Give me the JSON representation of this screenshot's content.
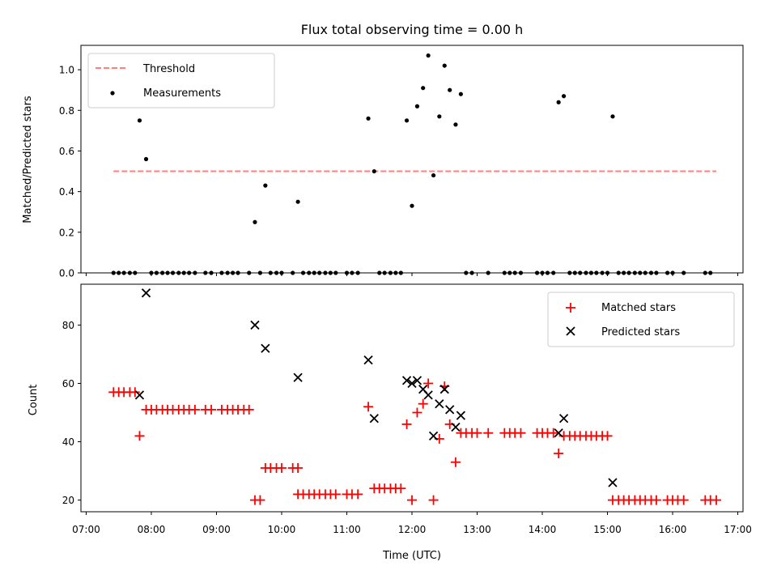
{
  "figure": {
    "title": "Flux total observing time = 0.00 h",
    "xlabel": "Time (UTC)"
  },
  "chart_data": [
    {
      "type": "scatter",
      "panel": "top",
      "title": "Flux total observing time = 0.00 h",
      "xlabel": "",
      "ylabel": "Matched/Predicted stars",
      "xlim": [
        6.92,
        17.08
      ],
      "ylim": [
        0,
        1.12
      ],
      "yticks": [
        0.0,
        0.2,
        0.4,
        0.6,
        0.8,
        1.0
      ],
      "ytick_labels": [
        "0.0",
        "0.2",
        "0.4",
        "0.6",
        "0.8",
        "1.0"
      ],
      "legend_position": "upper-left",
      "threshold": {
        "name": "Threshold",
        "color": "#ff7f7f",
        "y": 0.5,
        "x": [
          7.42,
          16.67
        ]
      },
      "measurements": {
        "name": "Measurements",
        "color": "#000000",
        "points": [
          [
            7.82,
            0.75
          ],
          [
            7.92,
            0.56
          ],
          [
            9.59,
            0.25
          ],
          [
            9.75,
            0.43
          ],
          [
            10.25,
            0.35
          ],
          [
            11.33,
            0.76
          ],
          [
            11.42,
            0.5
          ],
          [
            11.92,
            0.75
          ],
          [
            12.0,
            0.33
          ],
          [
            12.08,
            0.82
          ],
          [
            12.17,
            0.91
          ],
          [
            12.25,
            1.07
          ],
          [
            12.33,
            0.48
          ],
          [
            12.42,
            0.77
          ],
          [
            12.5,
            1.02
          ],
          [
            12.58,
            0.9
          ],
          [
            12.67,
            0.73
          ],
          [
            12.75,
            0.88
          ],
          [
            14.25,
            0.84
          ],
          [
            14.33,
            0.87
          ],
          [
            15.08,
            0.77
          ]
        ],
        "zeros_x": [
          7.42,
          7.5,
          7.58,
          7.67,
          7.75,
          8.0,
          8.08,
          8.17,
          8.25,
          8.33,
          8.42,
          8.5,
          8.58,
          8.67,
          8.83,
          8.92,
          9.08,
          9.17,
          9.25,
          9.33,
          9.5,
          9.67,
          9.83,
          9.92,
          10.0,
          10.17,
          10.33,
          10.42,
          10.5,
          10.58,
          10.67,
          10.75,
          10.83,
          11.0,
          11.08,
          11.17,
          11.5,
          11.58,
          11.67,
          11.75,
          11.83,
          12.83,
          12.92,
          13.17,
          13.42,
          13.5,
          13.58,
          13.67,
          13.92,
          14.0,
          14.08,
          14.17,
          14.42,
          14.5,
          14.58,
          14.67,
          14.75,
          14.83,
          14.92,
          15.0,
          15.17,
          15.25,
          15.33,
          15.42,
          15.5,
          15.58,
          15.67,
          15.75,
          15.92,
          16.0,
          16.17,
          16.5,
          16.58
        ]
      }
    },
    {
      "type": "scatter",
      "panel": "bottom",
      "xlabel": "Time (UTC)",
      "ylabel": "Count",
      "xlim": [
        6.92,
        17.08
      ],
      "ylim": [
        16,
        94
      ],
      "yticks": [
        20,
        40,
        60,
        80
      ],
      "ytick_labels": [
        "20",
        "40",
        "60",
        "80"
      ],
      "xticks": [
        7,
        8,
        9,
        10,
        11,
        12,
        13,
        14,
        15,
        16,
        17
      ],
      "xtick_labels": [
        "07:00",
        "08:00",
        "09:00",
        "10:00",
        "11:00",
        "12:00",
        "13:00",
        "14:00",
        "15:00",
        "16:00",
        "17:00"
      ],
      "legend_position": "upper-right",
      "series": [
        {
          "name": "Matched stars",
          "marker": "plus",
          "color": "#ff0000",
          "points": [
            [
              7.42,
              57
            ],
            [
              7.5,
              57
            ],
            [
              7.58,
              57
            ],
            [
              7.67,
              57
            ],
            [
              7.75,
              57
            ],
            [
              7.82,
              42
            ],
            [
              7.92,
              51
            ],
            [
              8.0,
              51
            ],
            [
              8.08,
              51
            ],
            [
              8.17,
              51
            ],
            [
              8.25,
              51
            ],
            [
              8.33,
              51
            ],
            [
              8.42,
              51
            ],
            [
              8.5,
              51
            ],
            [
              8.58,
              51
            ],
            [
              8.67,
              51
            ],
            [
              8.83,
              51
            ],
            [
              8.92,
              51
            ],
            [
              9.08,
              51
            ],
            [
              9.17,
              51
            ],
            [
              9.25,
              51
            ],
            [
              9.33,
              51
            ],
            [
              9.42,
              51
            ],
            [
              9.5,
              51
            ],
            [
              9.59,
              20
            ],
            [
              9.67,
              20
            ],
            [
              9.75,
              31
            ],
            [
              9.83,
              31
            ],
            [
              9.92,
              31
            ],
            [
              10.0,
              31
            ],
            [
              10.17,
              31
            ],
            [
              10.25,
              31
            ],
            [
              10.25,
              22
            ],
            [
              10.33,
              22
            ],
            [
              10.42,
              22
            ],
            [
              10.5,
              22
            ],
            [
              10.58,
              22
            ],
            [
              10.67,
              22
            ],
            [
              10.75,
              22
            ],
            [
              10.83,
              22
            ],
            [
              11.0,
              22
            ],
            [
              11.08,
              22
            ],
            [
              11.17,
              22
            ],
            [
              11.33,
              52
            ],
            [
              11.42,
              24
            ],
            [
              11.5,
              24
            ],
            [
              11.58,
              24
            ],
            [
              11.67,
              24
            ],
            [
              11.75,
              24
            ],
            [
              11.83,
              24
            ],
            [
              11.92,
              46
            ],
            [
              12.0,
              20
            ],
            [
              12.08,
              50
            ],
            [
              12.17,
              53
            ],
            [
              12.25,
              60
            ],
            [
              12.33,
              20
            ],
            [
              12.42,
              41
            ],
            [
              12.5,
              59
            ],
            [
              12.58,
              46
            ],
            [
              12.67,
              33
            ],
            [
              12.75,
              43
            ],
            [
              12.83,
              43
            ],
            [
              12.92,
              43
            ],
            [
              13.0,
              43
            ],
            [
              13.17,
              43
            ],
            [
              13.42,
              43
            ],
            [
              13.5,
              43
            ],
            [
              13.58,
              43
            ],
            [
              13.67,
              43
            ],
            [
              13.92,
              43
            ],
            [
              14.0,
              43
            ],
            [
              14.08,
              43
            ],
            [
              14.17,
              43
            ],
            [
              14.25,
              36
            ],
            [
              14.33,
              42
            ],
            [
              14.42,
              42
            ],
            [
              14.5,
              42
            ],
            [
              14.58,
              42
            ],
            [
              14.67,
              42
            ],
            [
              14.75,
              42
            ],
            [
              14.83,
              42
            ],
            [
              14.92,
              42
            ],
            [
              15.0,
              42
            ],
            [
              15.08,
              20
            ],
            [
              15.17,
              20
            ],
            [
              15.25,
              20
            ],
            [
              15.33,
              20
            ],
            [
              15.42,
              20
            ],
            [
              15.5,
              20
            ],
            [
              15.58,
              20
            ],
            [
              15.67,
              20
            ],
            [
              15.75,
              20
            ],
            [
              15.92,
              20
            ],
            [
              16.0,
              20
            ],
            [
              16.08,
              20
            ],
            [
              16.17,
              20
            ],
            [
              16.5,
              20
            ],
            [
              16.58,
              20
            ],
            [
              16.67,
              20
            ]
          ]
        },
        {
          "name": "Predicted stars",
          "marker": "x",
          "color": "#000000",
          "points": [
            [
              7.82,
              56
            ],
            [
              7.92,
              91
            ],
            [
              9.59,
              80
            ],
            [
              9.75,
              72
            ],
            [
              10.25,
              62
            ],
            [
              11.33,
              68
            ],
            [
              11.42,
              48
            ],
            [
              11.92,
              61
            ],
            [
              12.0,
              60
            ],
            [
              12.08,
              61
            ],
            [
              12.17,
              58
            ],
            [
              12.25,
              56
            ],
            [
              12.33,
              42
            ],
            [
              12.42,
              53
            ],
            [
              12.5,
              58
            ],
            [
              12.58,
              51
            ],
            [
              12.67,
              45
            ],
            [
              12.75,
              49
            ],
            [
              14.25,
              43
            ],
            [
              14.33,
              48
            ],
            [
              15.08,
              26
            ]
          ]
        }
      ]
    }
  ]
}
